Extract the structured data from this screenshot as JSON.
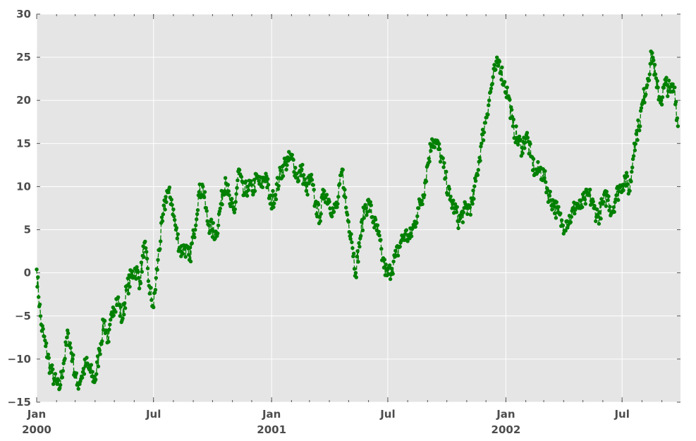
{
  "chart_data": {
    "type": "line",
    "title": "",
    "xlabel": "",
    "ylabel": "",
    "xlim": [
      "2000-01-01",
      "2002-09-30"
    ],
    "ylim": [
      -15,
      30
    ],
    "y_ticks": [
      -15,
      -10,
      -5,
      0,
      5,
      10,
      15,
      20,
      25,
      30
    ],
    "y_tick_labels": [
      "−15",
      "−10",
      "−5",
      "0",
      "5",
      "10",
      "15",
      "20",
      "25",
      "30"
    ],
    "x_major_ticks": [
      {
        "date": "2000-01-01",
        "label": "Jan",
        "sublabel": "2000"
      },
      {
        "date": "2000-07-01",
        "label": "Jul",
        "sublabel": ""
      },
      {
        "date": "2001-01-01",
        "label": "Jan",
        "sublabel": "2001"
      },
      {
        "date": "2001-07-01",
        "label": "Jul",
        "sublabel": ""
      },
      {
        "date": "2002-01-01",
        "label": "Jan",
        "sublabel": "2002"
      },
      {
        "date": "2002-07-01",
        "label": "Jul",
        "sublabel": ""
      }
    ],
    "grid": true,
    "background": "#e5e5e5",
    "series": [
      {
        "color": "#008000",
        "line_style": "dashed",
        "marker": "circle",
        "frequency": "daily",
        "start": "2000-01-01",
        "end": "2002-09-26",
        "points": [
          [
            "2000-01-01",
            0.4
          ],
          [
            "2000-01-08",
            -6.0
          ],
          [
            "2000-01-15",
            -8.5
          ],
          [
            "2000-01-22",
            -11.0
          ],
          [
            "2000-01-29",
            -12.5
          ],
          [
            "2000-02-05",
            -13.5
          ],
          [
            "2000-02-12",
            -10.5
          ],
          [
            "2000-02-19",
            -7.0
          ],
          [
            "2000-02-26",
            -10.0
          ],
          [
            "2000-03-04",
            -13.0
          ],
          [
            "2000-03-11",
            -12.0
          ],
          [
            "2000-03-18",
            -10.5
          ],
          [
            "2000-03-25",
            -11.5
          ],
          [
            "2000-04-01",
            -12.5
          ],
          [
            "2000-04-08",
            -9.0
          ],
          [
            "2000-04-15",
            -5.5
          ],
          [
            "2000-04-22",
            -8.0
          ],
          [
            "2000-04-29",
            -4.0
          ],
          [
            "2000-05-06",
            -3.0
          ],
          [
            "2000-05-13",
            -5.5
          ],
          [
            "2000-05-20",
            -2.0
          ],
          [
            "2000-05-27",
            -0.5
          ],
          [
            "2000-06-03",
            0.5
          ],
          [
            "2000-06-10",
            -1.0
          ],
          [
            "2000-06-17",
            3.5
          ],
          [
            "2000-06-24",
            -1.5
          ],
          [
            "2000-07-01",
            -4.0
          ],
          [
            "2000-07-08",
            1.5
          ],
          [
            "2000-07-15",
            6.0
          ],
          [
            "2000-07-22",
            9.5
          ],
          [
            "2000-07-29",
            8.5
          ],
          [
            "2000-08-05",
            5.0
          ],
          [
            "2000-08-12",
            2.5
          ],
          [
            "2000-08-19",
            3.0
          ],
          [
            "2000-08-26",
            1.5
          ],
          [
            "2000-09-02",
            4.5
          ],
          [
            "2000-09-09",
            9.0
          ],
          [
            "2000-09-16",
            10.0
          ],
          [
            "2000-09-23",
            6.0
          ],
          [
            "2000-09-30",
            5.0
          ],
          [
            "2000-10-07",
            4.5
          ],
          [
            "2000-10-14",
            8.0
          ],
          [
            "2000-10-21",
            11.0
          ],
          [
            "2000-10-28",
            8.0
          ],
          [
            "2000-11-04",
            7.0
          ],
          [
            "2000-11-11",
            12.0
          ],
          [
            "2000-11-18",
            9.0
          ],
          [
            "2000-11-25",
            10.0
          ],
          [
            "2000-12-02",
            9.5
          ],
          [
            "2000-12-09",
            11.0
          ],
          [
            "2000-12-16",
            10.0
          ],
          [
            "2000-12-23",
            11.5
          ],
          [
            "2000-12-30",
            8.0
          ],
          [
            "2001-01-06",
            9.0
          ],
          [
            "2001-01-13",
            11.0
          ],
          [
            "2001-01-20",
            12.5
          ],
          [
            "2001-01-27",
            13.0
          ],
          [
            "2001-02-03",
            13.2
          ],
          [
            "2001-02-10",
            11.0
          ],
          [
            "2001-02-17",
            12.0
          ],
          [
            "2001-02-24",
            9.5
          ],
          [
            "2001-03-03",
            11.0
          ],
          [
            "2001-03-10",
            8.0
          ],
          [
            "2001-03-17",
            6.5
          ],
          [
            "2001-03-24",
            9.5
          ],
          [
            "2001-03-31",
            8.5
          ],
          [
            "2001-04-07",
            7.0
          ],
          [
            "2001-04-14",
            8.0
          ],
          [
            "2001-04-21",
            12.0
          ],
          [
            "2001-04-28",
            7.0
          ],
          [
            "2001-05-05",
            4.5
          ],
          [
            "2001-05-12",
            0.0
          ],
          [
            "2001-05-19",
            4.0
          ],
          [
            "2001-05-26",
            7.5
          ],
          [
            "2001-06-02",
            8.0
          ],
          [
            "2001-06-09",
            6.0
          ],
          [
            "2001-06-16",
            4.5
          ],
          [
            "2001-06-23",
            1.5
          ],
          [
            "2001-06-30",
            -0.3
          ],
          [
            "2001-07-07",
            0.5
          ],
          [
            "2001-07-14",
            2.0
          ],
          [
            "2001-07-21",
            3.5
          ],
          [
            "2001-07-28",
            4.5
          ],
          [
            "2001-08-04",
            4.0
          ],
          [
            "2001-08-11",
            5.5
          ],
          [
            "2001-08-18",
            7.5
          ],
          [
            "2001-08-25",
            9.0
          ],
          [
            "2001-09-01",
            12.5
          ],
          [
            "2001-09-08",
            15.5
          ],
          [
            "2001-09-15",
            15.0
          ],
          [
            "2001-09-22",
            13.5
          ],
          [
            "2001-09-29",
            11.0
          ],
          [
            "2001-10-06",
            8.5
          ],
          [
            "2001-10-13",
            7.5
          ],
          [
            "2001-10-20",
            6.0
          ],
          [
            "2001-10-27",
            7.0
          ],
          [
            "2001-11-03",
            7.5
          ],
          [
            "2001-11-10",
            8.0
          ],
          [
            "2001-11-17",
            11.5
          ],
          [
            "2001-11-24",
            15.0
          ],
          [
            "2001-12-01",
            18.0
          ],
          [
            "2001-12-08",
            21.0
          ],
          [
            "2001-12-15",
            23.5
          ],
          [
            "2001-12-22",
            24.5
          ],
          [
            "2001-12-29",
            22.0
          ],
          [
            "2002-01-05",
            20.5
          ],
          [
            "2002-01-12",
            17.0
          ],
          [
            "2002-01-19",
            15.5
          ],
          [
            "2002-01-26",
            14.5
          ],
          [
            "2002-02-02",
            16.0
          ],
          [
            "2002-02-09",
            13.5
          ],
          [
            "2002-02-16",
            11.5
          ],
          [
            "2002-02-23",
            12.0
          ],
          [
            "2002-03-02",
            11.0
          ],
          [
            "2002-03-09",
            9.0
          ],
          [
            "2002-03-16",
            8.0
          ],
          [
            "2002-03-23",
            7.0
          ],
          [
            "2002-03-30",
            5.5
          ],
          [
            "2002-04-06",
            6.0
          ],
          [
            "2002-04-13",
            6.5
          ],
          [
            "2002-04-20",
            8.0
          ],
          [
            "2002-04-27",
            7.5
          ],
          [
            "2002-05-04",
            8.5
          ],
          [
            "2002-05-11",
            9.0
          ],
          [
            "2002-05-18",
            7.5
          ],
          [
            "2002-05-25",
            6.5
          ],
          [
            "2002-06-01",
            8.0
          ],
          [
            "2002-06-08",
            9.0
          ],
          [
            "2002-06-15",
            7.0
          ],
          [
            "2002-06-22",
            9.0
          ],
          [
            "2002-06-29",
            10.0
          ],
          [
            "2002-07-06",
            11.0
          ],
          [
            "2002-07-13",
            9.5
          ],
          [
            "2002-07-20",
            15.0
          ],
          [
            "2002-07-27",
            17.0
          ],
          [
            "2002-08-03",
            20.0
          ],
          [
            "2002-08-10",
            22.5
          ],
          [
            "2002-08-17",
            25.5
          ],
          [
            "2002-08-24",
            21.5
          ],
          [
            "2002-08-31",
            20.0
          ],
          [
            "2002-09-07",
            22.0
          ],
          [
            "2002-09-14",
            21.0
          ],
          [
            "2002-09-21",
            21.5
          ],
          [
            "2002-09-26",
            17.0
          ]
        ]
      }
    ]
  }
}
